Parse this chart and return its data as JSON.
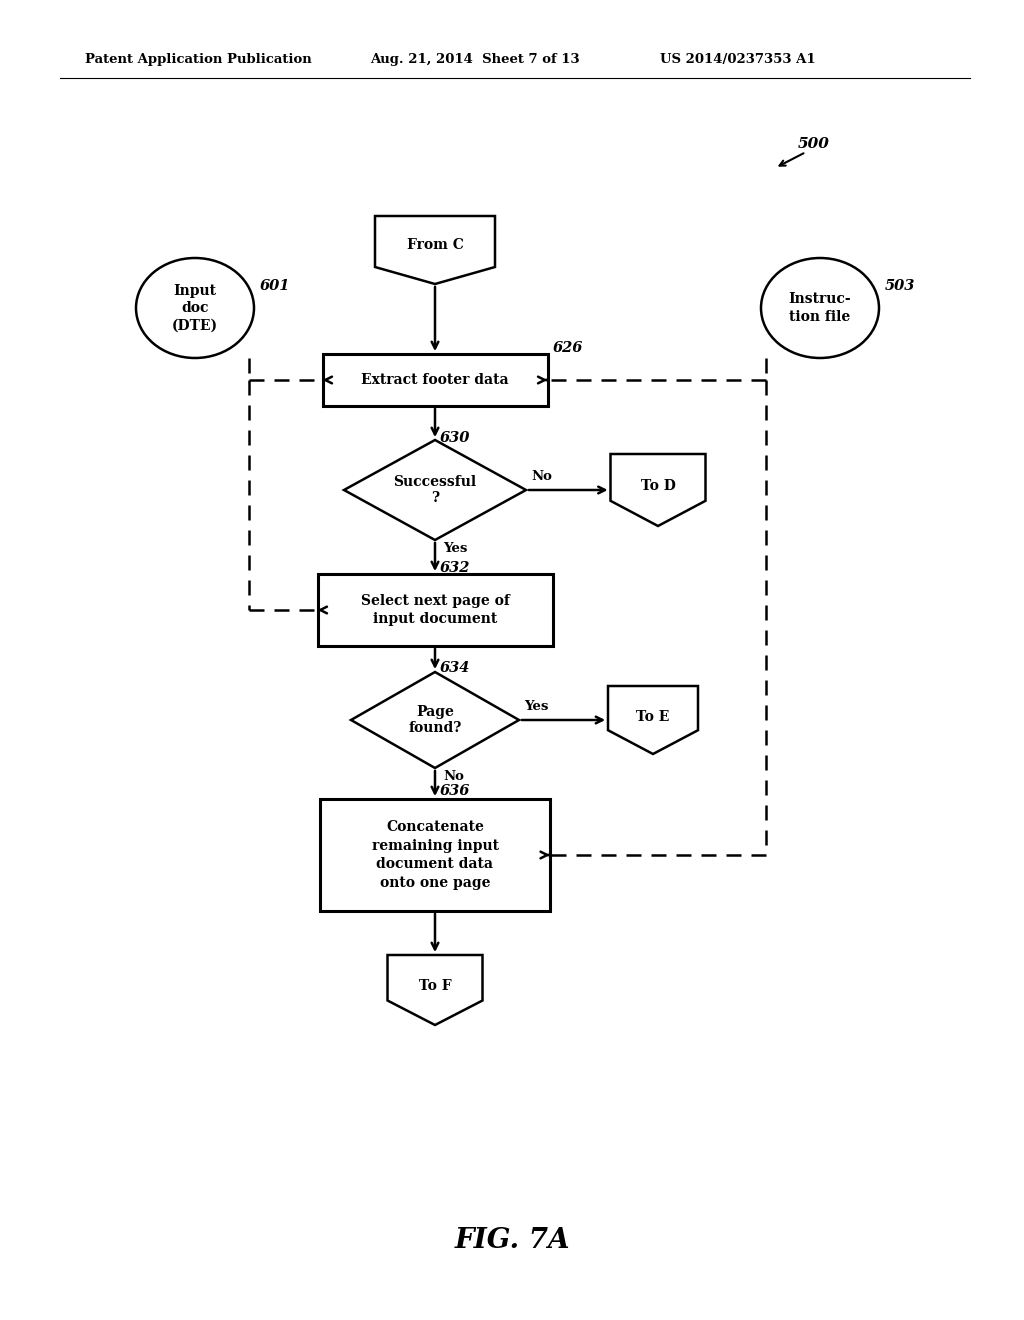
{
  "bg_color": "#ffffff",
  "header_left": "Patent Application Publication",
  "header_mid": "Aug. 21, 2014  Sheet 7 of 13",
  "header_right": "US 2014/0237353 A1",
  "fig_label": "FIG. 7A",
  "diagram_ref": "500"
}
